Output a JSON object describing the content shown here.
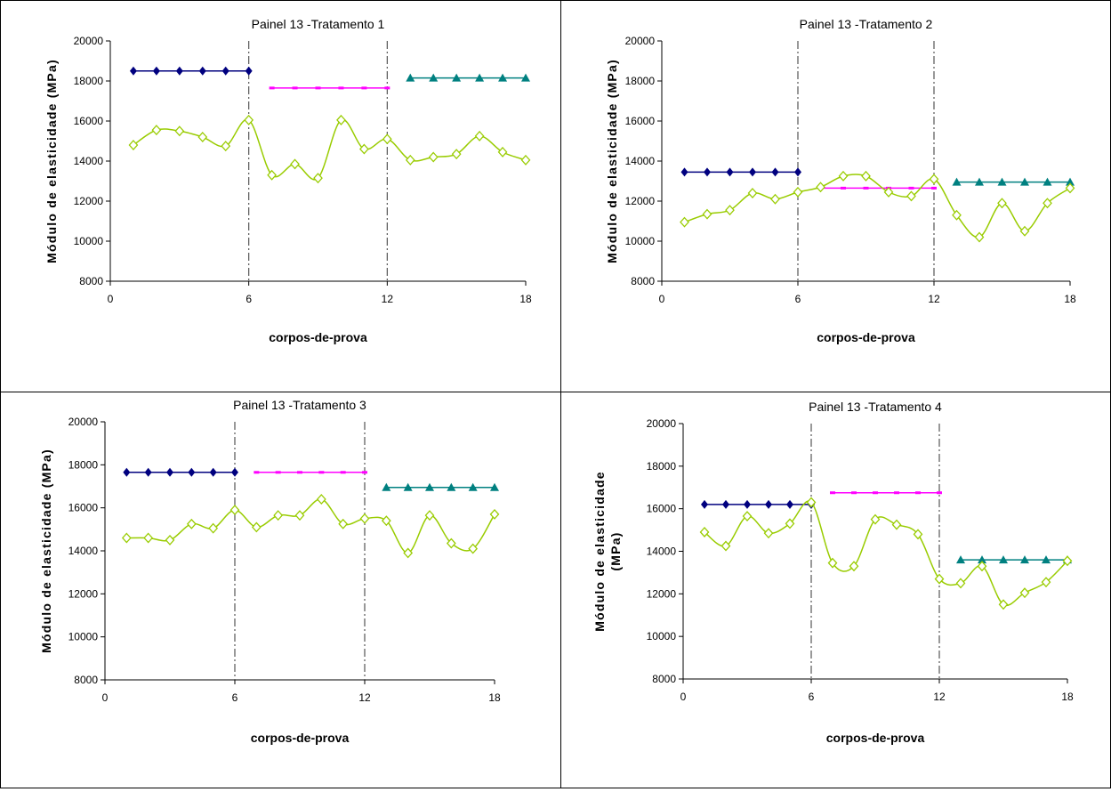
{
  "colors": {
    "series1": "#00007F",
    "series2": "#FF00FF",
    "series3": "#008080",
    "series4": "#99CC00",
    "divider": "#555555"
  },
  "chart_data": [
    {
      "type": "line",
      "title": "Painel 13 -Tratamento 1",
      "xlabel": "corpos-de-prova",
      "ylabel": "Módulo de elasticidade (MPa)",
      "xlim": [
        0,
        18
      ],
      "ylim": [
        8000,
        20000
      ],
      "xticks": [
        "0",
        "6",
        "12",
        "18"
      ],
      "yticks": [
        "8000",
        "10000",
        "12000",
        "14000",
        "16000",
        "18000",
        "20000"
      ],
      "dividers": [
        6,
        12
      ],
      "grid": false,
      "legend": "none",
      "series": [
        {
          "marker": "diamond",
          "x": [
            1,
            2,
            3,
            4,
            5,
            6
          ],
          "values": [
            18500,
            18500,
            18500,
            18500,
            18500,
            18500
          ]
        },
        {
          "marker": "dash",
          "x": [
            7,
            8,
            9,
            10,
            11,
            12
          ],
          "values": [
            17650,
            17650,
            17650,
            17650,
            17650,
            17650
          ]
        },
        {
          "marker": "triangle",
          "x": [
            13,
            14,
            15,
            16,
            17,
            18
          ],
          "values": [
            18150,
            18150,
            18150,
            18150,
            18150,
            18150
          ]
        },
        {
          "marker": "open-diamond",
          "smooth": true,
          "x": [
            1,
            2,
            3,
            4,
            5,
            6,
            7,
            8,
            9,
            10,
            11,
            12,
            13,
            14,
            15,
            16,
            17,
            18
          ],
          "values": [
            14800,
            15550,
            15500,
            15200,
            14750,
            16050,
            13300,
            13850,
            13150,
            16050,
            14600,
            15100,
            14050,
            14200,
            14350,
            15250,
            14450,
            14050
          ]
        }
      ]
    },
    {
      "type": "line",
      "title": "Painel 13 -Tratamento 2",
      "xlabel": "corpos-de-prova",
      "ylabel": "Módulo de elasticidade (MPa)",
      "xlim": [
        0,
        18
      ],
      "ylim": [
        8000,
        20000
      ],
      "xticks": [
        "0",
        "6",
        "12",
        "18"
      ],
      "yticks": [
        "8000",
        "10000",
        "12000",
        "14000",
        "16000",
        "18000",
        "20000"
      ],
      "dividers": [
        6,
        12
      ],
      "grid": false,
      "legend": "none",
      "series": [
        {
          "marker": "diamond",
          "x": [
            1,
            2,
            3,
            4,
            5,
            6
          ],
          "values": [
            13450,
            13450,
            13450,
            13450,
            13450,
            13450
          ]
        },
        {
          "marker": "dash",
          "x": [
            7,
            8,
            9,
            10,
            11,
            12
          ],
          "values": [
            12650,
            12650,
            12650,
            12650,
            12650,
            12650
          ]
        },
        {
          "marker": "triangle",
          "x": [
            13,
            14,
            15,
            16,
            17,
            18
          ],
          "values": [
            12950,
            12950,
            12950,
            12950,
            12950,
            12950
          ]
        },
        {
          "marker": "open-diamond",
          "smooth": true,
          "x": [
            1,
            2,
            3,
            4,
            5,
            6,
            7,
            8,
            9,
            10,
            11,
            12,
            13,
            14,
            15,
            16,
            17,
            18
          ],
          "values": [
            10950,
            11350,
            11550,
            12400,
            12100,
            12450,
            12700,
            13250,
            13250,
            12450,
            12250,
            13100,
            11300,
            10200,
            11900,
            10500,
            11900,
            12650
          ]
        }
      ]
    },
    {
      "type": "line",
      "title": "Painel 13 -Tratamento 3",
      "xlabel": "corpos-de-prova",
      "ylabel": "Módulo de elasticidade (MPa)",
      "xlim": [
        0,
        18
      ],
      "ylim": [
        8000,
        20000
      ],
      "xticks": [
        "0",
        "6",
        "12",
        "18"
      ],
      "yticks": [
        "8000",
        "10000",
        "12000",
        "14000",
        "16000",
        "18000",
        "20000"
      ],
      "dividers": [
        6,
        12
      ],
      "grid": false,
      "legend": "none",
      "series": [
        {
          "marker": "diamond",
          "x": [
            1,
            2,
            3,
            4,
            5,
            6
          ],
          "values": [
            17650,
            17650,
            17650,
            17650,
            17650,
            17650
          ]
        },
        {
          "marker": "dash",
          "x": [
            7,
            8,
            9,
            10,
            11,
            12
          ],
          "values": [
            17650,
            17650,
            17650,
            17650,
            17650,
            17650
          ]
        },
        {
          "marker": "triangle",
          "x": [
            13,
            14,
            15,
            16,
            17,
            18
          ],
          "values": [
            16950,
            16950,
            16950,
            16950,
            16950,
            16950
          ]
        },
        {
          "marker": "open-diamond",
          "smooth": true,
          "x": [
            1,
            2,
            3,
            4,
            5,
            6,
            7,
            8,
            9,
            10,
            11,
            12,
            13,
            14,
            15,
            16,
            17,
            18
          ],
          "values": [
            14600,
            14600,
            14500,
            15250,
            15050,
            15900,
            15100,
            15650,
            15650,
            16400,
            15250,
            15500,
            15400,
            13900,
            15650,
            14350,
            14100,
            15700
          ]
        }
      ]
    },
    {
      "type": "line",
      "title": "Painel 13 -Tratamento 4",
      "xlabel": "corpos-de-prova",
      "ylabel": [
        "Módulo de elasticidade",
        "(MPa)"
      ],
      "xlim": [
        0,
        18
      ],
      "ylim": [
        8000,
        20000
      ],
      "xticks": [
        "0",
        "6",
        "12",
        "18"
      ],
      "yticks": [
        "8000",
        "10000",
        "12000",
        "14000",
        "16000",
        "18000",
        "20000"
      ],
      "dividers": [
        6,
        12
      ],
      "grid": false,
      "legend": "none",
      "series": [
        {
          "marker": "diamond",
          "x": [
            1,
            2,
            3,
            4,
            5,
            6
          ],
          "values": [
            16200,
            16200,
            16200,
            16200,
            16200,
            16200
          ]
        },
        {
          "marker": "dash",
          "x": [
            7,
            8,
            9,
            10,
            11,
            12
          ],
          "values": [
            16750,
            16750,
            16750,
            16750,
            16750,
            16750
          ]
        },
        {
          "marker": "triangle",
          "x": [
            13,
            14,
            15,
            16,
            17,
            18
          ],
          "values": [
            13600,
            13600,
            13600,
            13600,
            13600,
            13600
          ]
        },
        {
          "marker": "open-diamond",
          "smooth": true,
          "x": [
            1,
            2,
            3,
            4,
            5,
            6,
            7,
            8,
            9,
            10,
            11,
            12,
            13,
            14,
            15,
            16,
            17,
            18
          ],
          "values": [
            14900,
            14250,
            15650,
            14850,
            15300,
            16300,
            13450,
            13300,
            15500,
            15250,
            14800,
            12700,
            12500,
            13300,
            11500,
            12050,
            12550,
            13550
          ]
        }
      ]
    }
  ]
}
